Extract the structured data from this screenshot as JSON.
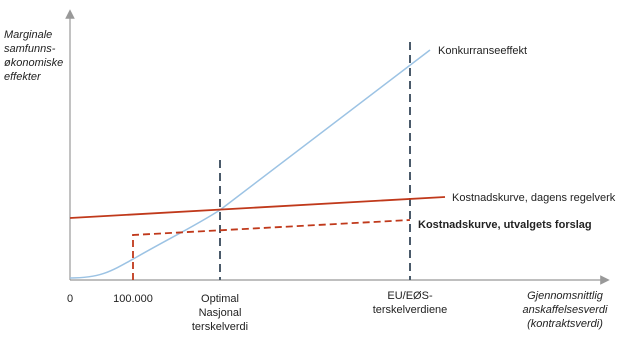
{
  "y_axis_label": [
    "Marginale",
    "samfunns-",
    "økonomiske",
    "effekter"
  ],
  "x_axis_label": [
    "Gjennomsnittlig",
    "anskaffelsesverdi",
    "(kontraktsverdi)"
  ],
  "x_labels": {
    "origin": "0",
    "threshold_low": "100.000",
    "optimal": [
      "Optimal",
      "Nasjonal",
      "terskelverdi"
    ],
    "eu": [
      "EU/EØS-",
      "terskelverdiene"
    ]
  },
  "curves": {
    "competition": "Konkurranseeffekt",
    "cost_current": "Kostnadskurve, dagens regelverk",
    "cost_proposal": "Kostnadskurve, utvalgets forslag"
  }
}
